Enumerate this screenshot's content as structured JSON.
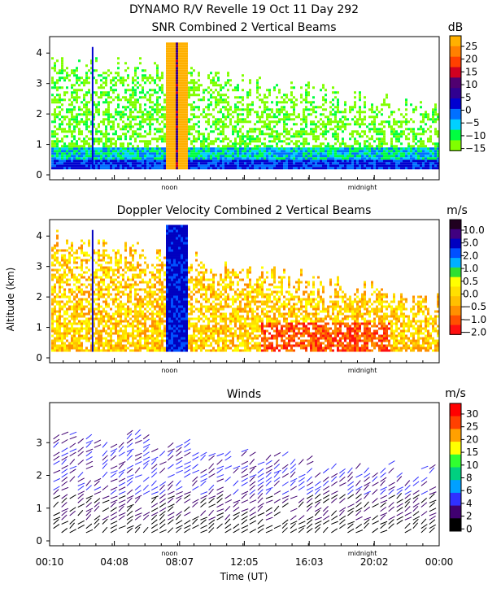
{
  "figure": {
    "title": "DYNAMO R/V Revelle  19 Oct 11 Day 292",
    "y_axis_label": "Altitude (km)",
    "x_axis_label": "Time (UT)",
    "x_tick_labels": [
      "00:10",
      "04:08",
      "08:07",
      "12:05",
      "16:03",
      "20:02",
      "00:00"
    ],
    "noon_label": "noon",
    "midnight_label": "midnight",
    "colors": {
      "snr_scale": [
        "#80ff00",
        "#00ff40",
        "#00d0ff",
        "#0070ff",
        "#0000d0",
        "#300090",
        "#500070",
        "#d00020",
        "#ff4000",
        "#ff8000",
        "#ffb000"
      ],
      "doppler_scale": [
        "#ff1010",
        "#ff5000",
        "#ff9000",
        "#ffc000",
        "#ffe000",
        "#ffff00",
        "#30e030",
        "#00b0ff",
        "#0050ff",
        "#0000c0",
        "#400080",
        "#200020"
      ],
      "winds_scale": [
        "#000000",
        "#400070",
        "#3030ff",
        "#00a0ff",
        "#00d080",
        "#30ff30",
        "#ffff00",
        "#ffa000",
        "#ff4000",
        "#ff0000"
      ]
    }
  },
  "chart_data": [
    {
      "type": "heatmap",
      "title": "SNR Combined 2 Vertical Beams",
      "colorbar_unit": "dB",
      "colorbar_ticks": [
        "25",
        "20",
        "15",
        "10",
        "5",
        "0",
        "−5",
        "−10",
        "−15"
      ],
      "colorbar_values": [
        25,
        20,
        15,
        10,
        5,
        0,
        -5,
        -10,
        -15
      ],
      "ylim": [
        0,
        4.3
      ],
      "y_ticks": [
        0,
        1,
        2,
        3,
        4
      ],
      "x_time_range_hours": [
        0.17,
        24.0
      ],
      "features": [
        {
          "name": "strong echo bands",
          "start_time": "07:13",
          "end_time": "08:36",
          "max_altitude_km": 4.3
        },
        {
          "name": "near-surface high SNR layer",
          "max_altitude_km": 0.5
        }
      ]
    },
    {
      "type": "heatmap",
      "title": "Doppler Velocity Combined 2 Vertical Beams",
      "colorbar_unit": "m/s",
      "colorbar_ticks": [
        "10.0",
        "5.0",
        "2.0",
        "1.0",
        "0.5",
        "0.0",
        "−0.5",
        "−1.0",
        "−2.0"
      ],
      "colorbar_values": [
        10.0,
        5.0,
        2.0,
        1.0,
        0.5,
        0.0,
        -0.5,
        -1.0,
        -2.0
      ],
      "ylim": [
        0,
        4.3
      ],
      "y_ticks": [
        0,
        1,
        2,
        3,
        4
      ],
      "x_time_range_hours": [
        0.17,
        24.0
      ],
      "features": [
        {
          "name": "strong downward velocity bands",
          "start_time": "07:13",
          "end_time": "08:36",
          "value": 5.0
        },
        {
          "name": "negative velocities near 14-20 UT",
          "value": -1.0
        }
      ]
    },
    {
      "type": "scatter",
      "title": "Winds",
      "colorbar_unit": "m/s",
      "colorbar_ticks": [
        "30",
        "25",
        "20",
        "15",
        "10",
        "8",
        "6",
        "4",
        "2",
        "0"
      ],
      "colorbar_values": [
        30,
        25,
        20,
        15,
        10,
        8,
        6,
        4,
        2,
        0
      ],
      "ylim": [
        0,
        4.0
      ],
      "y_ticks": [
        0,
        1,
        2,
        3
      ],
      "x_time_range_hours": [
        0.17,
        24.0
      ]
    }
  ]
}
